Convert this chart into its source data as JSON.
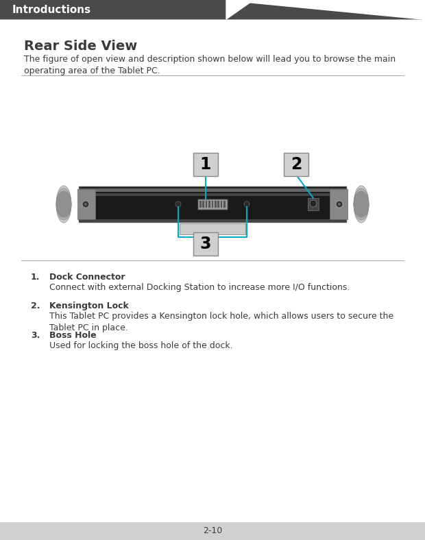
{
  "page_bg": "#ffffff",
  "header_bg": "#4a4a4a",
  "header_text": "Introductions",
  "header_text_color": "#ffffff",
  "header_font_size": 11,
  "title": "Rear Side View",
  "title_font_size": 14,
  "body_text": "The figure of open view and description shown below will lead you to browse the main\noperating area of the Tablet PC.",
  "body_font_size": 9,
  "text_color": "#3a3a3a",
  "items": [
    {
      "num": "1.",
      "bold": "Dock Connector",
      "desc": "Connect with external Docking Station to increase more I/O functions."
    },
    {
      "num": "2.",
      "bold": "Kensington Lock",
      "desc": "This Tablet PC provides a Kensington lock hole, which allows users to secure the\nTablet PC in place."
    },
    {
      "num": "3.",
      "bold": "Boss Hole",
      "desc": "Used for locking the boss hole of the dock."
    }
  ],
  "footer_text": "2-10",
  "footer_bg": "#d0d0d0",
  "line_color": "#aaaaaa",
  "callout_bg": "#d0d0d0",
  "callout_text_color": "#000000",
  "line_cyan": "#00aacc"
}
